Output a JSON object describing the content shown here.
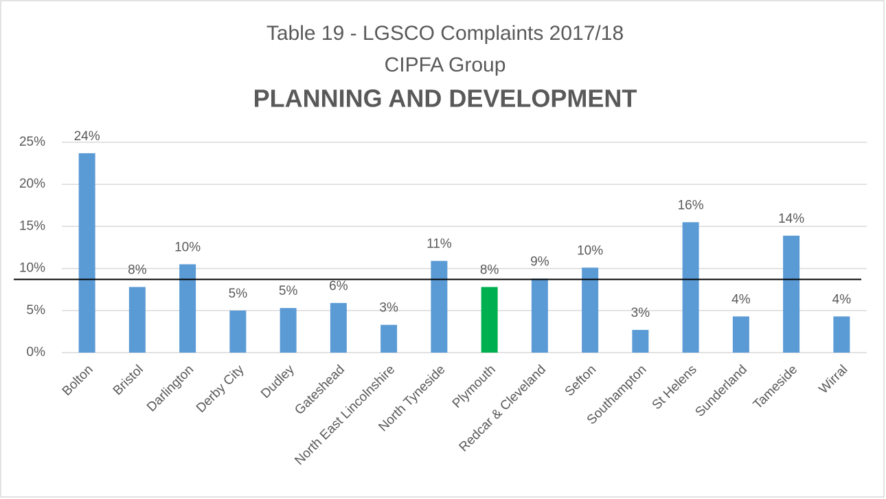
{
  "chart_data": {
    "type": "bar",
    "title": "Table 19 - LGSCO Complaints 2017/18",
    "subtitle": "CIPFA Group",
    "heading": "PLANNING AND DEVELOPMENT",
    "categories": [
      "Bolton",
      "Bristol",
      "Darlington",
      "Derby City",
      "Dudley",
      "Gateshead",
      "North East Lincolnshire",
      "North Tyneside",
      "Plymouth",
      "Redcar & Cleveland",
      "Sefton",
      "Southampton",
      "St Helens",
      "Sunderland",
      "Tameside",
      "Wirral"
    ],
    "values": [
      23.7,
      7.8,
      10.5,
      5.0,
      5.3,
      5.9,
      3.3,
      10.9,
      7.8,
      8.8,
      10.1,
      2.7,
      15.5,
      4.3,
      13.9,
      4.3
    ],
    "value_labels": [
      "24%",
      "8%",
      "10%",
      "5%",
      "5%",
      "6%",
      "3%",
      "11%",
      "8%",
      "9%",
      "10%",
      "3%",
      "16%",
      "4%",
      "14%",
      "4%"
    ],
    "colors": [
      "#5b9bd5",
      "#5b9bd5",
      "#5b9bd5",
      "#5b9bd5",
      "#5b9bd5",
      "#5b9bd5",
      "#5b9bd5",
      "#5b9bd5",
      "#00b050",
      "#5b9bd5",
      "#5b9bd5",
      "#5b9bd5",
      "#5b9bd5",
      "#5b9bd5",
      "#5b9bd5",
      "#5b9bd5"
    ],
    "reference_line": 8.7,
    "ylim": [
      0,
      25
    ],
    "yticks": [
      {
        "value": 0,
        "label": "0%"
      },
      {
        "value": 5,
        "label": "5%"
      },
      {
        "value": 10,
        "label": "10%"
      },
      {
        "value": 15,
        "label": "15%"
      },
      {
        "value": 20,
        "label": "20%"
      },
      {
        "value": 25,
        "label": "25%"
      }
    ],
    "grid": true
  }
}
